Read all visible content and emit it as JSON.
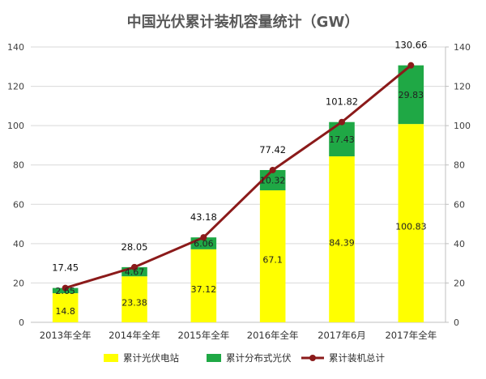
{
  "chart_data": {
    "type": "bar",
    "stacked": true,
    "title": "中国光伏累计装机容量统计（GW）",
    "categories": [
      "2013年全年",
      "2014年全年",
      "2015年全年",
      "2016年全年",
      "2017年6月",
      "2017年全年"
    ],
    "series": [
      {
        "name": "累计光伏电站",
        "type": "bar",
        "color": "#ffff00",
        "values": [
          14.8,
          23.38,
          37.12,
          67.1,
          84.39,
          100.83
        ],
        "labels": [
          "14.8",
          "23.38",
          "37.12",
          "67.1",
          "84.39",
          "100.83"
        ]
      },
      {
        "name": "累计分布式光伏",
        "type": "bar",
        "color": "#1fa845",
        "values": [
          2.65,
          4.67,
          6.06,
          10.32,
          17.43,
          29.83
        ],
        "labels": [
          "2.65",
          "4.67",
          "6.06",
          "10.32",
          "17.43",
          "29.83"
        ]
      },
      {
        "name": "累计装机总计",
        "type": "line",
        "color": "#8b1a1a",
        "values": [
          17.45,
          28.05,
          43.18,
          77.42,
          101.82,
          130.66
        ],
        "labels": [
          "17.45",
          "28.05",
          "43.18",
          "77.42",
          "101.82",
          "130.66"
        ]
      }
    ],
    "ylim": [
      0,
      140
    ],
    "yticks": [
      "0",
      "20",
      "40",
      "60",
      "80",
      "100",
      "120",
      "140"
    ],
    "y2lim": [
      0,
      140
    ],
    "y2ticks": [
      "0",
      "20",
      "40",
      "60",
      "80",
      "100",
      "120",
      "140"
    ],
    "grid": true,
    "legend": "bottom"
  }
}
